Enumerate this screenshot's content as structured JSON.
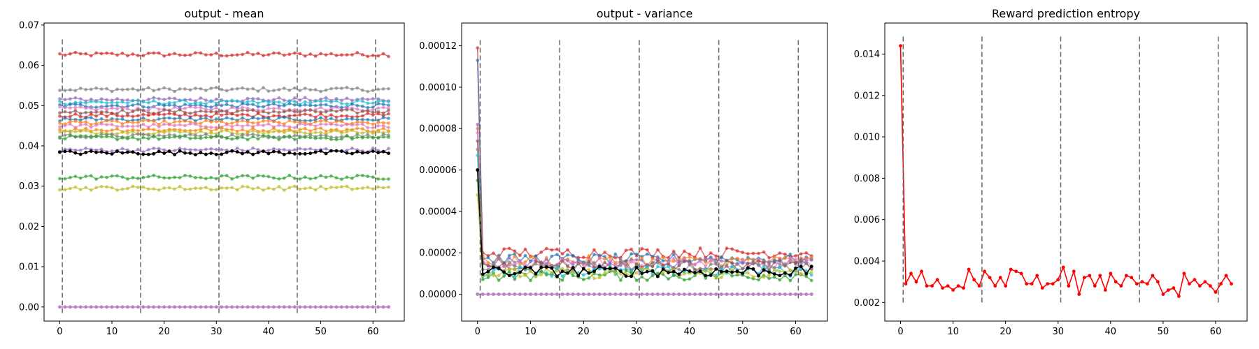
{
  "chart_data": [
    {
      "type": "line",
      "title": "output - mean",
      "xlabel": "",
      "ylabel": "",
      "xlim": [
        -3,
        66
      ],
      "ylim": [
        -0.0035,
        0.0705
      ],
      "xticks": [
        0,
        10,
        20,
        30,
        40,
        50,
        60
      ],
      "yticks": [
        0.0,
        0.01,
        0.02,
        0.03,
        0.04,
        0.05,
        0.06,
        0.07
      ],
      "ytick_decimals": 2,
      "vlines": [
        0.5,
        15.5,
        30.5,
        45.5,
        60.5
      ],
      "vline_range": [
        -0.0015,
        0.0665
      ],
      "n_points": 64,
      "noise_amplitude": 0.0005,
      "grid": false,
      "series": [
        {
          "color": "#d62728",
          "level": 0.0627
        },
        {
          "color": "#7f7f7f",
          "level": 0.054
        },
        {
          "color": "#9467bd",
          "level": 0.0515
        },
        {
          "color": "#17becf",
          "level": 0.0508
        },
        {
          "color": "#1f77b4",
          "level": 0.05
        },
        {
          "color": "#e377c2",
          "level": 0.0492
        },
        {
          "color": "#8c564b",
          "level": 0.0485
        },
        {
          "color": "#d62728",
          "level": 0.0476
        },
        {
          "color": "#1f77b4",
          "level": 0.0466
        },
        {
          "color": "#ff7f0e",
          "level": 0.0458
        },
        {
          "color": "#e377c2",
          "level": 0.045
        },
        {
          "color": "#ff7f0e",
          "level": 0.044
        },
        {
          "color": "#bcbd22",
          "level": 0.0434
        },
        {
          "color": "#7f7f7f",
          "level": 0.0425
        },
        {
          "color": "#2ca02c",
          "level": 0.042
        },
        {
          "color": "#9467bd",
          "level": 0.039
        },
        {
          "color": "#000000",
          "level": 0.0383,
          "alpha": 1.0
        },
        {
          "color": "#2ca02c",
          "level": 0.0322
        },
        {
          "color": "#bcbd22",
          "level": 0.0295
        },
        {
          "color": "#1f77b4",
          "level": 0.0
        },
        {
          "color": "#e377c2",
          "level": 0.0
        }
      ]
    },
    {
      "type": "line",
      "title": "output - variance",
      "xlabel": "",
      "ylabel": "",
      "xlim": [
        -3,
        66
      ],
      "ylim": [
        -1.3e-05,
        0.000131
      ],
      "xticks": [
        0,
        10,
        20,
        30,
        40,
        50,
        60
      ],
      "yticks": [
        0.0,
        2e-05,
        4e-05,
        6e-05,
        8e-05,
        0.0001,
        0.00012
      ],
      "ytick_decimals": 5,
      "vlines": [
        0.5,
        15.5,
        30.5,
        45.5,
        60.5
      ],
      "vline_range": [
        -2e-06,
        0.000124
      ],
      "n_points": 64,
      "noise_amplitude": 2.5e-06,
      "grid": false,
      "series": [
        {
          "color": "#d62728",
          "start": 0.000119,
          "level": 2e-05
        },
        {
          "color": "#1f77b4",
          "start": 0.000113,
          "level": 1.7e-05
        },
        {
          "color": "#ff7f0e",
          "start": 8e-05,
          "level": 1.6e-05
        },
        {
          "color": "#9467bd",
          "start": 8.2e-05,
          "level": 1.5e-05
        },
        {
          "color": "#e377c2",
          "start": 7.8e-05,
          "level": 1.5e-05
        },
        {
          "color": "#8c564b",
          "start": 7.4e-05,
          "level": 1.4e-05
        },
        {
          "color": "#7f7f7f",
          "start": 7e-05,
          "level": 1.3e-05
        },
        {
          "color": "#17becf",
          "start": 6.7e-05,
          "level": 1.1e-05
        },
        {
          "color": "#2ca02c",
          "start": 5.5e-05,
          "level": 9e-06
        },
        {
          "color": "#bcbd22",
          "start": 4.8e-05,
          "level": 1e-05
        },
        {
          "color": "#000000",
          "start": 6e-05,
          "level": 1.1e-05,
          "alpha": 1.0
        },
        {
          "color": "#1f77b4",
          "start": 0.0,
          "level": 0.0
        },
        {
          "color": "#e377c2",
          "start": 0.0,
          "level": 0.0
        }
      ]
    },
    {
      "type": "line",
      "title": "Reward prediction entropy",
      "xlabel": "",
      "ylabel": "",
      "xlim": [
        -3,
        66
      ],
      "ylim": [
        0.0011,
        0.0155
      ],
      "xticks": [
        0,
        10,
        20,
        30,
        40,
        50,
        60
      ],
      "yticks": [
        0.002,
        0.004,
        0.006,
        0.008,
        0.01,
        0.012,
        0.014
      ],
      "ytick_decimals": 3,
      "vlines": [
        0.5,
        15.5,
        30.5,
        45.5,
        60.5
      ],
      "vline_range": [
        0.002,
        0.0149
      ],
      "grid": false,
      "series": [
        {
          "color": "#ff0000",
          "alpha": 1.0,
          "x": [
            0,
            1,
            2,
            3,
            4,
            5,
            6,
            7,
            8,
            9,
            10,
            11,
            12,
            13,
            14,
            15,
            16,
            17,
            18,
            19,
            20,
            21,
            22,
            23,
            24,
            25,
            26,
            27,
            28,
            29,
            30,
            31,
            32,
            33,
            34,
            35,
            36,
            37,
            38,
            39,
            40,
            41,
            42,
            43,
            44,
            45,
            46,
            47,
            48,
            49,
            50,
            51,
            52,
            53,
            54,
            55,
            56,
            57,
            58,
            59,
            60,
            61,
            62,
            63
          ],
          "values": [
            0.0144,
            0.0029,
            0.0034,
            0.003,
            0.0035,
            0.0028,
            0.0028,
            0.0031,
            0.0027,
            0.0028,
            0.0026,
            0.0028,
            0.0027,
            0.0036,
            0.0031,
            0.0028,
            0.0035,
            0.0032,
            0.0028,
            0.0032,
            0.0028,
            0.0036,
            0.0035,
            0.0034,
            0.0029,
            0.0029,
            0.0033,
            0.0027,
            0.0029,
            0.0029,
            0.0031,
            0.0037,
            0.0028,
            0.0035,
            0.0024,
            0.0032,
            0.0033,
            0.0028,
            0.0033,
            0.0026,
            0.0034,
            0.003,
            0.0028,
            0.0033,
            0.0032,
            0.0029,
            0.003,
            0.0029,
            0.0033,
            0.003,
            0.0024,
            0.0026,
            0.0027,
            0.0023,
            0.0034,
            0.0029,
            0.0031,
            0.0028,
            0.003,
            0.0028,
            0.0025,
            0.0029,
            0.0033,
            0.0029
          ]
        }
      ]
    }
  ]
}
